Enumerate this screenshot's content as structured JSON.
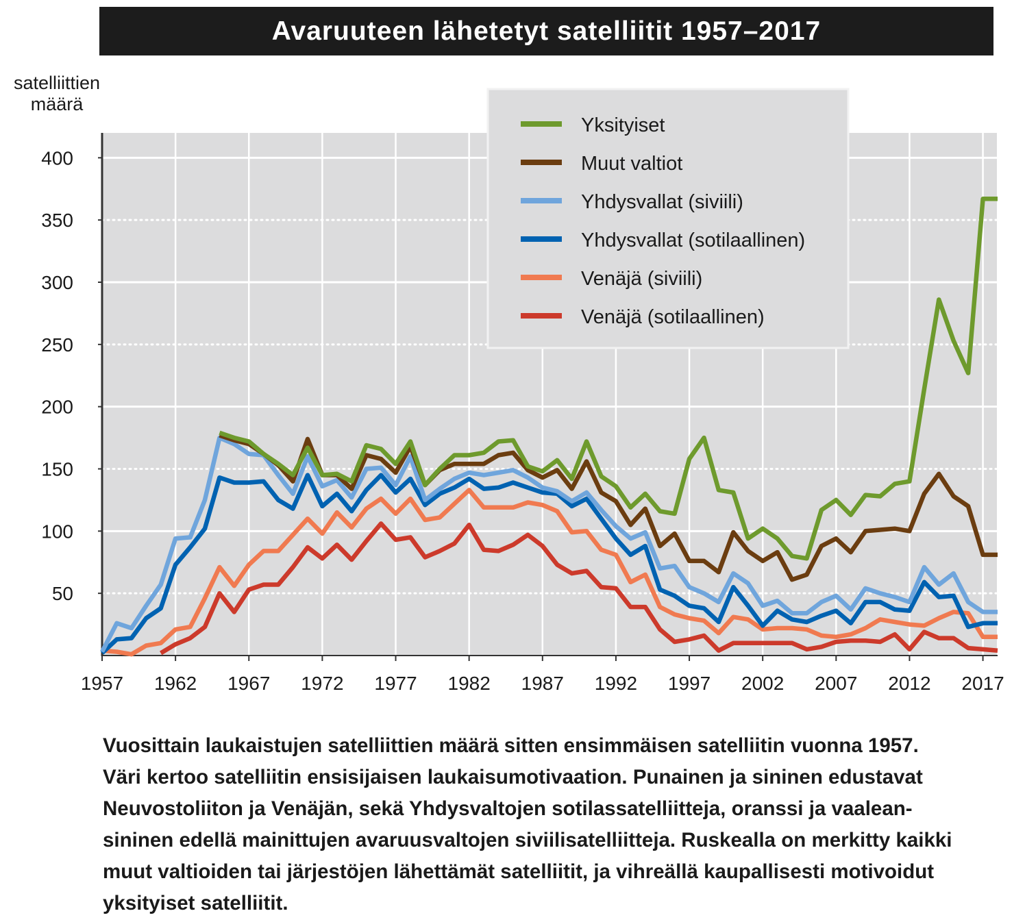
{
  "title": "Avaruuteen lähetetyt satelliitit 1957–2017",
  "ylabel_lines": [
    "satelliittien",
    "määrä"
  ],
  "caption_lines": [
    "Vuosittain laukaistujen satelliittien määrä sitten ensimmäisen satelliitin vuonna 1957.",
    "Väri kertoo satelliitin ensisijaisen laukaisumotivaation. Punainen ja sininen edustavat",
    "Neuvostoliiton ja Venäjän, sekä Yhdysvaltojen sotilassatelliitteja, oranssi ja vaalean-",
    "sininen edellä mainittujen avaruusvaltojen siviilisatelliitteja. Ruskealla on merkitty kaikki",
    "muut valtioiden tai järjestöjen lähettämät satelliitit, ja vihreällä kaupallisesti motivoidut",
    "yksityiset satelliitit."
  ],
  "chart_data": {
    "type": "line",
    "title": "Avaruuteen lähetetyt satelliitit 1957–2017",
    "ylabel": "satelliittien määrä",
    "xlabel": "",
    "xlim": [
      1957,
      2018
    ],
    "ylim": [
      0,
      420
    ],
    "xticks": [
      1957,
      1962,
      1967,
      1972,
      1977,
      1982,
      1987,
      1992,
      1997,
      2002,
      2007,
      2012,
      2017
    ],
    "yticks": [
      50,
      100,
      150,
      200,
      250,
      300,
      350,
      400
    ],
    "solid_gridlines": [
      100,
      200,
      300,
      400
    ],
    "dotted_gridlines": [
      50,
      150,
      250,
      350
    ],
    "legend_position": "top-right",
    "series": [
      {
        "name": "Yksityiset",
        "color": "#6e9a2d",
        "x": [
          1965,
          1966,
          1967,
          1968,
          1969,
          1970,
          1971,
          1972,
          1973,
          1974,
          1975,
          1976,
          1977,
          1978,
          1979,
          1980,
          1981,
          1982,
          1983,
          1984,
          1985,
          1986,
          1987,
          1988,
          1989,
          1990,
          1991,
          1992,
          1993,
          1994,
          1995,
          1996,
          1997,
          1998,
          1999,
          2000,
          2001,
          2002,
          2003,
          2004,
          2005,
          2006,
          2007,
          2008,
          2009,
          2010,
          2011,
          2012,
          2013,
          2014,
          2015,
          2016,
          2017,
          2018
        ],
        "y": [
          179,
          175,
          172,
          162,
          154,
          145,
          167,
          145,
          146,
          140,
          169,
          166,
          154,
          172,
          137,
          150,
          161,
          161,
          163,
          172,
          173,
          152,
          148,
          157,
          142,
          172,
          144,
          136,
          119,
          130,
          116,
          114,
          158,
          175,
          133,
          131,
          94,
          102,
          94,
          80,
          78,
          117,
          125,
          113,
          129,
          128,
          138,
          140,
          214,
          286,
          253,
          227,
          367,
          367
        ]
      },
      {
        "name": "Muut valtiot",
        "color": "#6b3d10",
        "x": [
          1965,
          1966,
          1967,
          1968,
          1969,
          1970,
          1971,
          1972,
          1973,
          1974,
          1975,
          1976,
          1977,
          1978,
          1979,
          1980,
          1981,
          1982,
          1983,
          1984,
          1985,
          1986,
          1987,
          1988,
          1989,
          1990,
          1991,
          1992,
          1993,
          1994,
          1995,
          1996,
          1997,
          1998,
          1999,
          2000,
          2001,
          2002,
          2003,
          2004,
          2005,
          2006,
          2007,
          2008,
          2009,
          2010,
          2011,
          2012,
          2013,
          2014,
          2015,
          2016,
          2017,
          2018
        ],
        "y": [
          177,
          173,
          170,
          162,
          153,
          140,
          174,
          145,
          145,
          134,
          161,
          158,
          147,
          168,
          137,
          149,
          154,
          154,
          154,
          161,
          163,
          149,
          143,
          149,
          134,
          156,
          131,
          124,
          105,
          118,
          88,
          98,
          76,
          76,
          67,
          99,
          84,
          76,
          83,
          61,
          65,
          88,
          94,
          83,
          100,
          101,
          102,
          100,
          130,
          146,
          128,
          120,
          81,
          81
        ]
      },
      {
        "name": "Yhdysvallat (siviili)",
        "color": "#6fa5dc",
        "x": [
          1957,
          1958,
          1959,
          1960,
          1961,
          1962,
          1963,
          1964,
          1965,
          1966,
          1967,
          1968,
          1969,
          1970,
          1971,
          1972,
          1973,
          1974,
          1975,
          1976,
          1977,
          1978,
          1979,
          1980,
          1981,
          1982,
          1983,
          1984,
          1985,
          1986,
          1987,
          1988,
          1989,
          1990,
          1991,
          1992,
          1993,
          1994,
          1995,
          1996,
          1997,
          1998,
          1999,
          2000,
          2001,
          2002,
          2003,
          2004,
          2005,
          2006,
          2007,
          2008,
          2009,
          2010,
          2011,
          2012,
          2013,
          2014,
          2015,
          2016,
          2017,
          2018
        ],
        "y": [
          3,
          26,
          22,
          40,
          57,
          94,
          95,
          125,
          175,
          170,
          162,
          161,
          145,
          130,
          160,
          136,
          141,
          127,
          150,
          151,
          137,
          160,
          125,
          134,
          142,
          147,
          145,
          147,
          149,
          143,
          135,
          132,
          124,
          131,
          117,
          104,
          94,
          99,
          70,
          72,
          55,
          50,
          43,
          66,
          58,
          40,
          44,
          34,
          34,
          43,
          48,
          37,
          54,
          50,
          47,
          43,
          71,
          57,
          66,
          43,
          35,
          35
        ]
      },
      {
        "name": "Yhdysvallat (sotilaallinen)",
        "color": "#0062b1",
        "x": [
          1957,
          1958,
          1959,
          1960,
          1961,
          1962,
          1963,
          1964,
          1965,
          1966,
          1967,
          1968,
          1969,
          1970,
          1971,
          1972,
          1973,
          1974,
          1975,
          1976,
          1977,
          1978,
          1979,
          1980,
          1981,
          1982,
          1983,
          1984,
          1985,
          1986,
          1987,
          1988,
          1989,
          1990,
          1991,
          1992,
          1993,
          1994,
          1995,
          1996,
          1997,
          1998,
          1999,
          2000,
          2001,
          2002,
          2003,
          2004,
          2005,
          2006,
          2007,
          2008,
          2009,
          2010,
          2011,
          2012,
          2013,
          2014,
          2015,
          2016,
          2017,
          2018
        ],
        "y": [
          2,
          13,
          14,
          30,
          38,
          73,
          87,
          102,
          143,
          139,
          139,
          140,
          125,
          118,
          145,
          120,
          130,
          116,
          133,
          145,
          131,
          142,
          121,
          130,
          135,
          142,
          134,
          135,
          139,
          135,
          131,
          130,
          120,
          126,
          110,
          94,
          81,
          88,
          53,
          48,
          40,
          38,
          27,
          55,
          40,
          24,
          36,
          29,
          27,
          32,
          36,
          26,
          43,
          43,
          37,
          36,
          59,
          47,
          48,
          23,
          26,
          26
        ]
      },
      {
        "name": "Venäjä (siviili)",
        "color": "#f07a50",
        "x": [
          1957,
          1958,
          1959,
          1960,
          1961,
          1962,
          1963,
          1964,
          1965,
          1966,
          1967,
          1968,
          1969,
          1970,
          1971,
          1972,
          1973,
          1974,
          1975,
          1976,
          1977,
          1978,
          1979,
          1980,
          1981,
          1982,
          1983,
          1984,
          1985,
          1986,
          1987,
          1988,
          1989,
          1990,
          1991,
          1992,
          1993,
          1994,
          1995,
          1996,
          1997,
          1998,
          1999,
          2000,
          2001,
          2002,
          2003,
          2004,
          2005,
          2006,
          2007,
          2008,
          2009,
          2010,
          2011,
          2012,
          2013,
          2014,
          2015,
          2016,
          2017,
          2018
        ],
        "y": [
          4,
          3,
          1,
          8,
          10,
          21,
          23,
          46,
          71,
          56,
          73,
          84,
          84,
          97,
          110,
          98,
          115,
          103,
          118,
          126,
          114,
          126,
          109,
          111,
          122,
          133,
          119,
          119,
          119,
          123,
          121,
          116,
          99,
          100,
          85,
          81,
          59,
          65,
          39,
          33,
          30,
          28,
          18,
          31,
          29,
          21,
          22,
          22,
          21,
          16,
          15,
          17,
          22,
          29,
          27,
          25,
          24,
          30,
          35,
          34,
          15,
          15
        ]
      },
      {
        "name": "Venäjä (sotilaallinen)",
        "color": "#cc3a2b",
        "x": [
          1961,
          1962,
          1963,
          1964,
          1965,
          1966,
          1967,
          1968,
          1969,
          1970,
          1971,
          1972,
          1973,
          1974,
          1975,
          1976,
          1977,
          1978,
          1979,
          1980,
          1981,
          1982,
          1983,
          1984,
          1985,
          1986,
          1987,
          1988,
          1989,
          1990,
          1991,
          1992,
          1993,
          1994,
          1995,
          1996,
          1997,
          1998,
          1999,
          2000,
          2001,
          2002,
          2003,
          2004,
          2005,
          2006,
          2007,
          2008,
          2009,
          2010,
          2011,
          2012,
          2013,
          2014,
          2015,
          2016,
          2017,
          2018
        ],
        "y": [
          2,
          9,
          14,
          23,
          50,
          35,
          53,
          57,
          57,
          71,
          87,
          78,
          89,
          77,
          92,
          106,
          93,
          95,
          79,
          84,
          90,
          105,
          85,
          84,
          89,
          97,
          88,
          73,
          66,
          68,
          55,
          54,
          39,
          39,
          21,
          11,
          13,
          16,
          4,
          10,
          10,
          10,
          10,
          10,
          5,
          7,
          11,
          12,
          12,
          11,
          17,
          5,
          19,
          14,
          14,
          6,
          5,
          4
        ]
      }
    ]
  }
}
